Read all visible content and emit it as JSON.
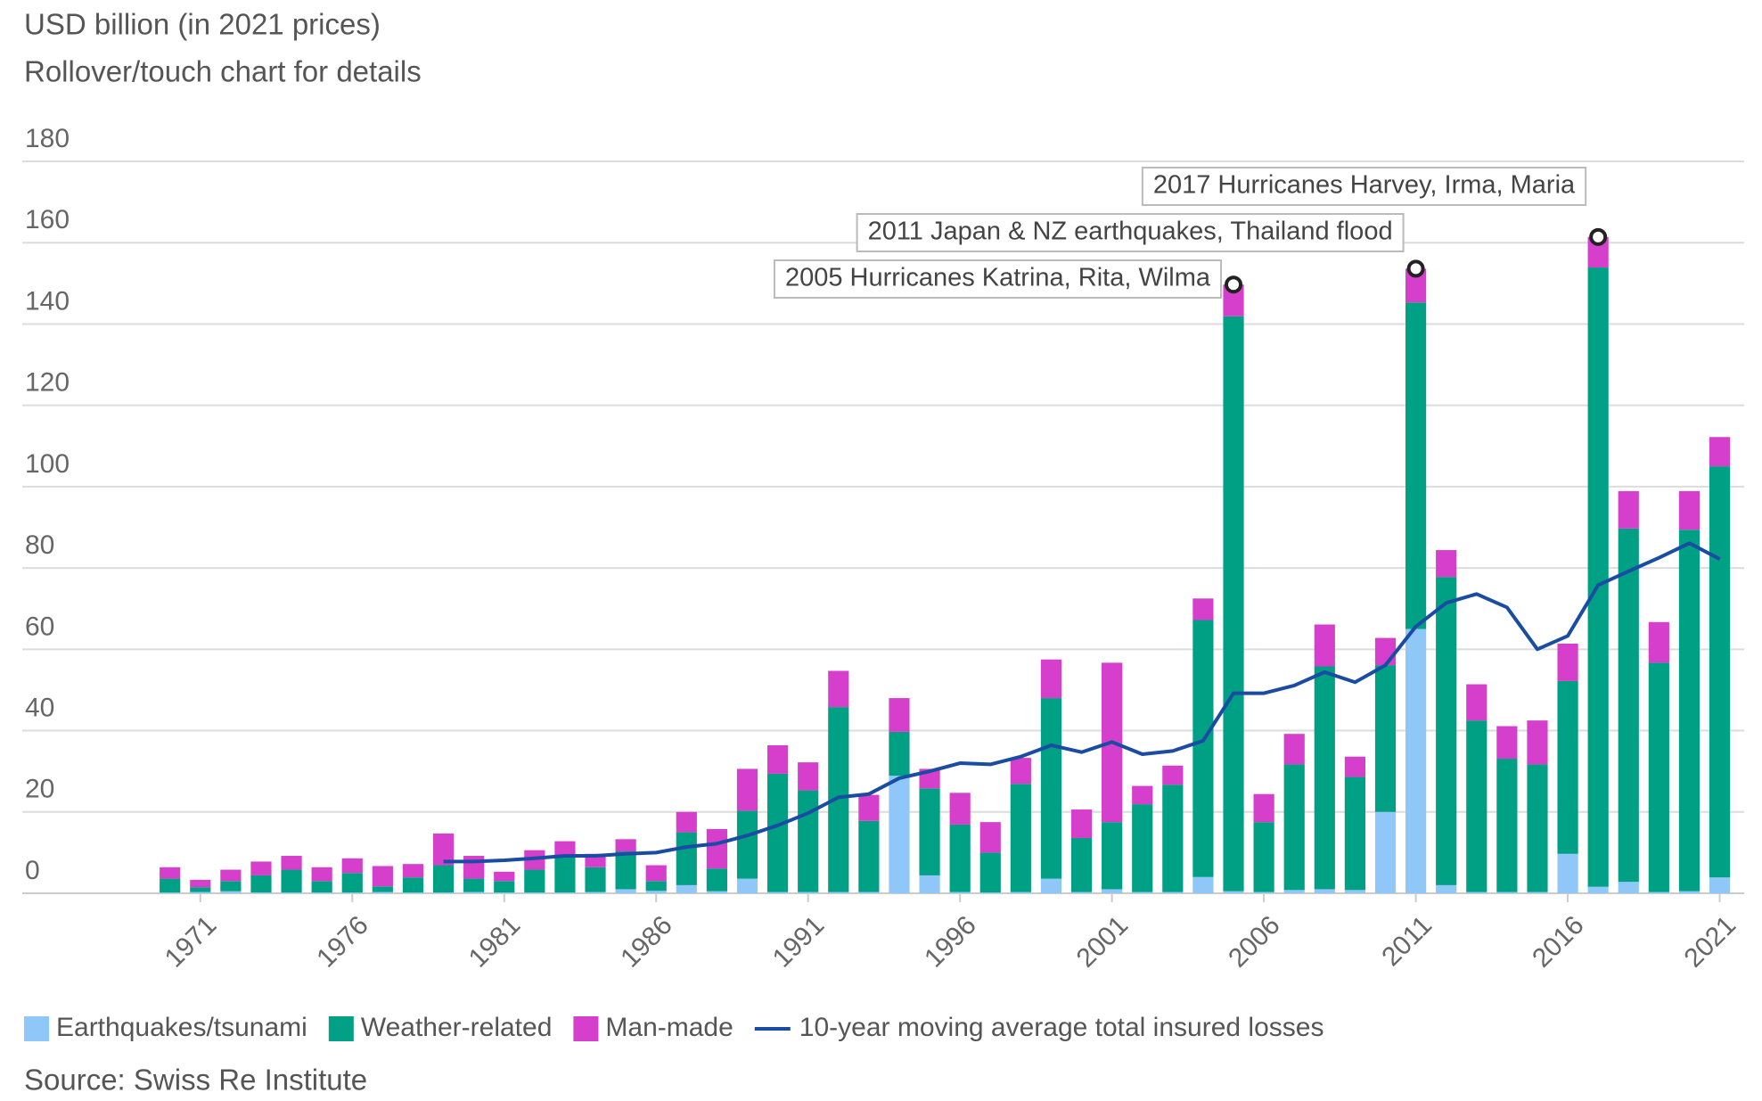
{
  "chart_data": {
    "type": "bar",
    "stacked": true,
    "title": "USD billion (in 2021 prices)",
    "subtitle": "Rollover/touch chart for details",
    "source": "Source: Swiss Re Institute",
    "x": [
      1970,
      1971,
      1972,
      1973,
      1974,
      1975,
      1976,
      1977,
      1978,
      1979,
      1980,
      1981,
      1982,
      1983,
      1984,
      1985,
      1986,
      1987,
      1988,
      1989,
      1990,
      1991,
      1992,
      1993,
      1994,
      1995,
      1996,
      1997,
      1998,
      1999,
      2000,
      2001,
      2002,
      2003,
      2004,
      2005,
      2006,
      2007,
      2008,
      2009,
      2010,
      2011,
      2012,
      2013,
      2014,
      2015,
      2016,
      2017,
      2018,
      2019,
      2020,
      2021
    ],
    "xlim": [
      1969.1,
      2021.6
    ],
    "xticks": [
      1971,
      1976,
      1981,
      1986,
      1991,
      1996,
      2001,
      2006,
      2011,
      2016,
      2021
    ],
    "ylim": [
      0,
      180
    ],
    "yticks": [
      0,
      20,
      40,
      60,
      80,
      100,
      120,
      140,
      160,
      180
    ],
    "grid": true,
    "series": [
      {
        "name": "Earthquakes/tsunami",
        "color": "#8fc8f8",
        "values": [
          0.2,
          0.3,
          0.5,
          0.2,
          0.2,
          0.2,
          0.2,
          0.3,
          0.2,
          0.2,
          0.3,
          0.2,
          0.2,
          0.2,
          0.3,
          1,
          0.6,
          2,
          0.5,
          3.6,
          0.3,
          0.3,
          0.3,
          0.3,
          28.9,
          4.4,
          0.3,
          0.2,
          0.3,
          3.6,
          0.3,
          1,
          0.3,
          0.3,
          4,
          0.5,
          0.3,
          0.8,
          1,
          0.8,
          20,
          65,
          2,
          0.3,
          0.3,
          0.3,
          9.7,
          1.6,
          2.8,
          0.3,
          0.5,
          3.9
        ]
      },
      {
        "name": "Weather-related",
        "color": "#00a085",
        "values": [
          3.4,
          1.2,
          2.5,
          4.2,
          5.6,
          2.8,
          4.8,
          1.4,
          3.7,
          6.7,
          3.3,
          2.8,
          5.6,
          9.2,
          6.1,
          9.3,
          2.4,
          13,
          5.6,
          16.7,
          29.1,
          25,
          45.5,
          17.5,
          10.8,
          21.4,
          16.6,
          9.8,
          26.6,
          44.4,
          13.3,
          16.5,
          21.6,
          26.4,
          63.2,
          141.4,
          17.2,
          30.9,
          54.8,
          27.8,
          36.1,
          80.3,
          75.8,
          42.2,
          32.8,
          31.4,
          42.5,
          152.3,
          86.9,
          56.4,
          88.9,
          101.1
        ]
      },
      {
        "name": "Man-made",
        "color": "#d53fcb",
        "values": [
          2.8,
          1.8,
          2.8,
          3.4,
          3.4,
          3.4,
          3.6,
          5,
          3.3,
          7.8,
          5.6,
          2.3,
          4.8,
          3.4,
          3.3,
          3,
          3.9,
          5,
          9.7,
          10.3,
          7,
          6.9,
          8.9,
          6.4,
          8.3,
          4.8,
          7.8,
          7.5,
          6.4,
          9.5,
          7,
          39.2,
          4.5,
          4.7,
          5.3,
          7.8,
          6.9,
          7.5,
          10.3,
          5,
          6.7,
          8.3,
          6.6,
          8.9,
          8,
          10.8,
          9.2,
          7.5,
          9.2,
          10,
          9.5,
          7.2
        ]
      },
      {
        "name": "10-year moving average total insured losses",
        "type": "line",
        "color": "#1a4ca3",
        "values": [
          null,
          null,
          null,
          null,
          null,
          null,
          null,
          null,
          null,
          7.8,
          7.8,
          8.1,
          8.6,
          9.2,
          9.2,
          9.7,
          10,
          11.4,
          12.2,
          14.2,
          16.7,
          19.7,
          23.6,
          24.4,
          28.3,
          30,
          32,
          31.7,
          33.6,
          36.4,
          34.7,
          37.2,
          34.2,
          35,
          37.5,
          49.2,
          49.2,
          51.1,
          54.4,
          51.9,
          56.1,
          65.6,
          71.4,
          73.6,
          70.3,
          60,
          63.3,
          75.8,
          79.2,
          82.5,
          86.1,
          82.2
        ]
      }
    ],
    "annotations": [
      {
        "text": "2005 Hurricanes Katrina, Rita, Wilma",
        "x": 2005
      },
      {
        "text": "2011 Japan & NZ earthquakes, Thailand flood",
        "x": 2011
      },
      {
        "text": "2017 Hurricanes Harvey, Irma, Maria",
        "x": 2017
      }
    ]
  }
}
